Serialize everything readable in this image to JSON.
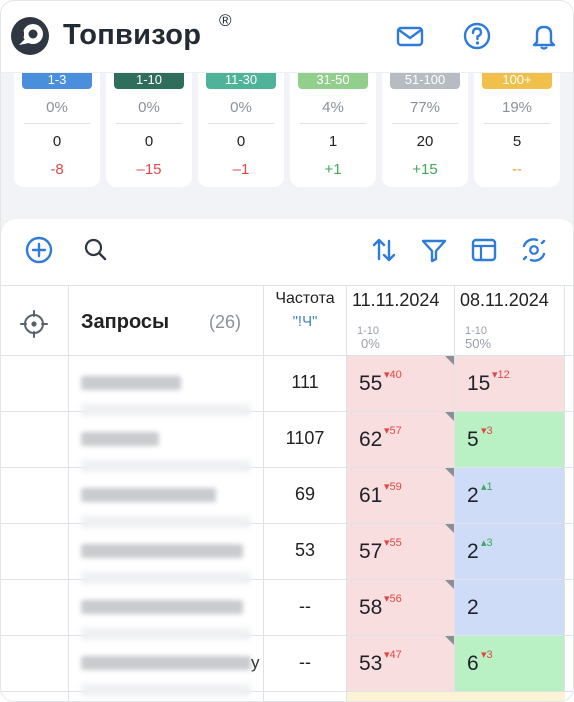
{
  "header": {
    "brand": "Топвизор",
    "brand_reg": "®",
    "icons": [
      "mail-icon",
      "help-icon",
      "bell-icon"
    ]
  },
  "position_groups": [
    {
      "range": "1-3",
      "percent": "0%",
      "count": "0",
      "delta": "-8",
      "color": "#4a8fdb",
      "delta_color": "#e04848"
    },
    {
      "range": "1-10",
      "percent": "0%",
      "count": "0",
      "delta": "–15",
      "color": "#2f6e5a",
      "delta_color": "#e04848"
    },
    {
      "range": "11-30",
      "percent": "0%",
      "count": "0",
      "delta": "–1",
      "color": "#4fb39a",
      "delta_color": "#e04848"
    },
    {
      "range": "31-50",
      "percent": "4%",
      "count": "1",
      "delta": "+1",
      "color": "#93cf8c",
      "delta_color": "#3ea85a"
    },
    {
      "range": "51-100",
      "percent": "77%",
      "count": "20",
      "delta": "+15",
      "color": "#b7bcc3",
      "delta_color": "#3ea85a"
    },
    {
      "range": "100+",
      "percent": "19%",
      "count": "5",
      "delta": "--",
      "color": "#f1c04a",
      "delta_color": "#e3a62a"
    }
  ],
  "toolbar": {
    "icons": [
      "add-icon",
      "search-icon",
      "sort-icon",
      "filter-icon",
      "columns-icon",
      "settings-icon"
    ]
  },
  "table": {
    "queries_label": "Запросы",
    "queries_count": "(26)",
    "freq_label": "Частота",
    "freq_sub": "\"!Ч\"",
    "dates": [
      {
        "date": "11.11.2024",
        "range": "1-10",
        "percent": "0%"
      },
      {
        "date": "08.11.2024",
        "range": "1-10",
        "percent": "50%"
      }
    ],
    "rows": [
      {
        "freq": "111",
        "tail": "",
        "c1": {
          "pos": "55",
          "chg": "▾40",
          "dir": "down"
        },
        "c2": {
          "pos": "15",
          "chg": "▾12",
          "dir": "down",
          "bg": "#f8dede"
        }
      },
      {
        "freq": "1107",
        "tail": "",
        "c1": {
          "pos": "62",
          "chg": "▾57",
          "dir": "down"
        },
        "c2": {
          "pos": "5",
          "chg": "▾3",
          "dir": "down",
          "bg": "#b9f0c4"
        }
      },
      {
        "freq": "69",
        "tail": "",
        "c1": {
          "pos": "61",
          "chg": "▾59",
          "dir": "down"
        },
        "c2": {
          "pos": "2",
          "chg": "▴1",
          "dir": "up",
          "bg": "#cfdcf7"
        }
      },
      {
        "freq": "53",
        "tail": "",
        "c1": {
          "pos": "57",
          "chg": "▾55",
          "dir": "down"
        },
        "c2": {
          "pos": "2",
          "chg": "▴3",
          "dir": "up",
          "bg": "#cfdcf7"
        }
      },
      {
        "freq": "--",
        "tail": "",
        "c1": {
          "pos": "58",
          "chg": "▾56",
          "dir": "down"
        },
        "c2": {
          "pos": "2",
          "chg": "",
          "dir": "none",
          "bg": "#cfdcf7"
        }
      },
      {
        "freq": "--",
        "tail": "у",
        "c1": {
          "pos": "53",
          "chg": "▾47",
          "dir": "down"
        },
        "c2": {
          "pos": "6",
          "chg": "▾3",
          "dir": "down",
          "bg": "#b9f0c4"
        }
      }
    ]
  },
  "colors": {
    "accent": "#2f7bd9",
    "negative": "#e04848",
    "positive": "#3ea85a",
    "cell_red": "#f8dede",
    "cell_green": "#b9f0c4",
    "cell_blue": "#cfdcf7"
  }
}
